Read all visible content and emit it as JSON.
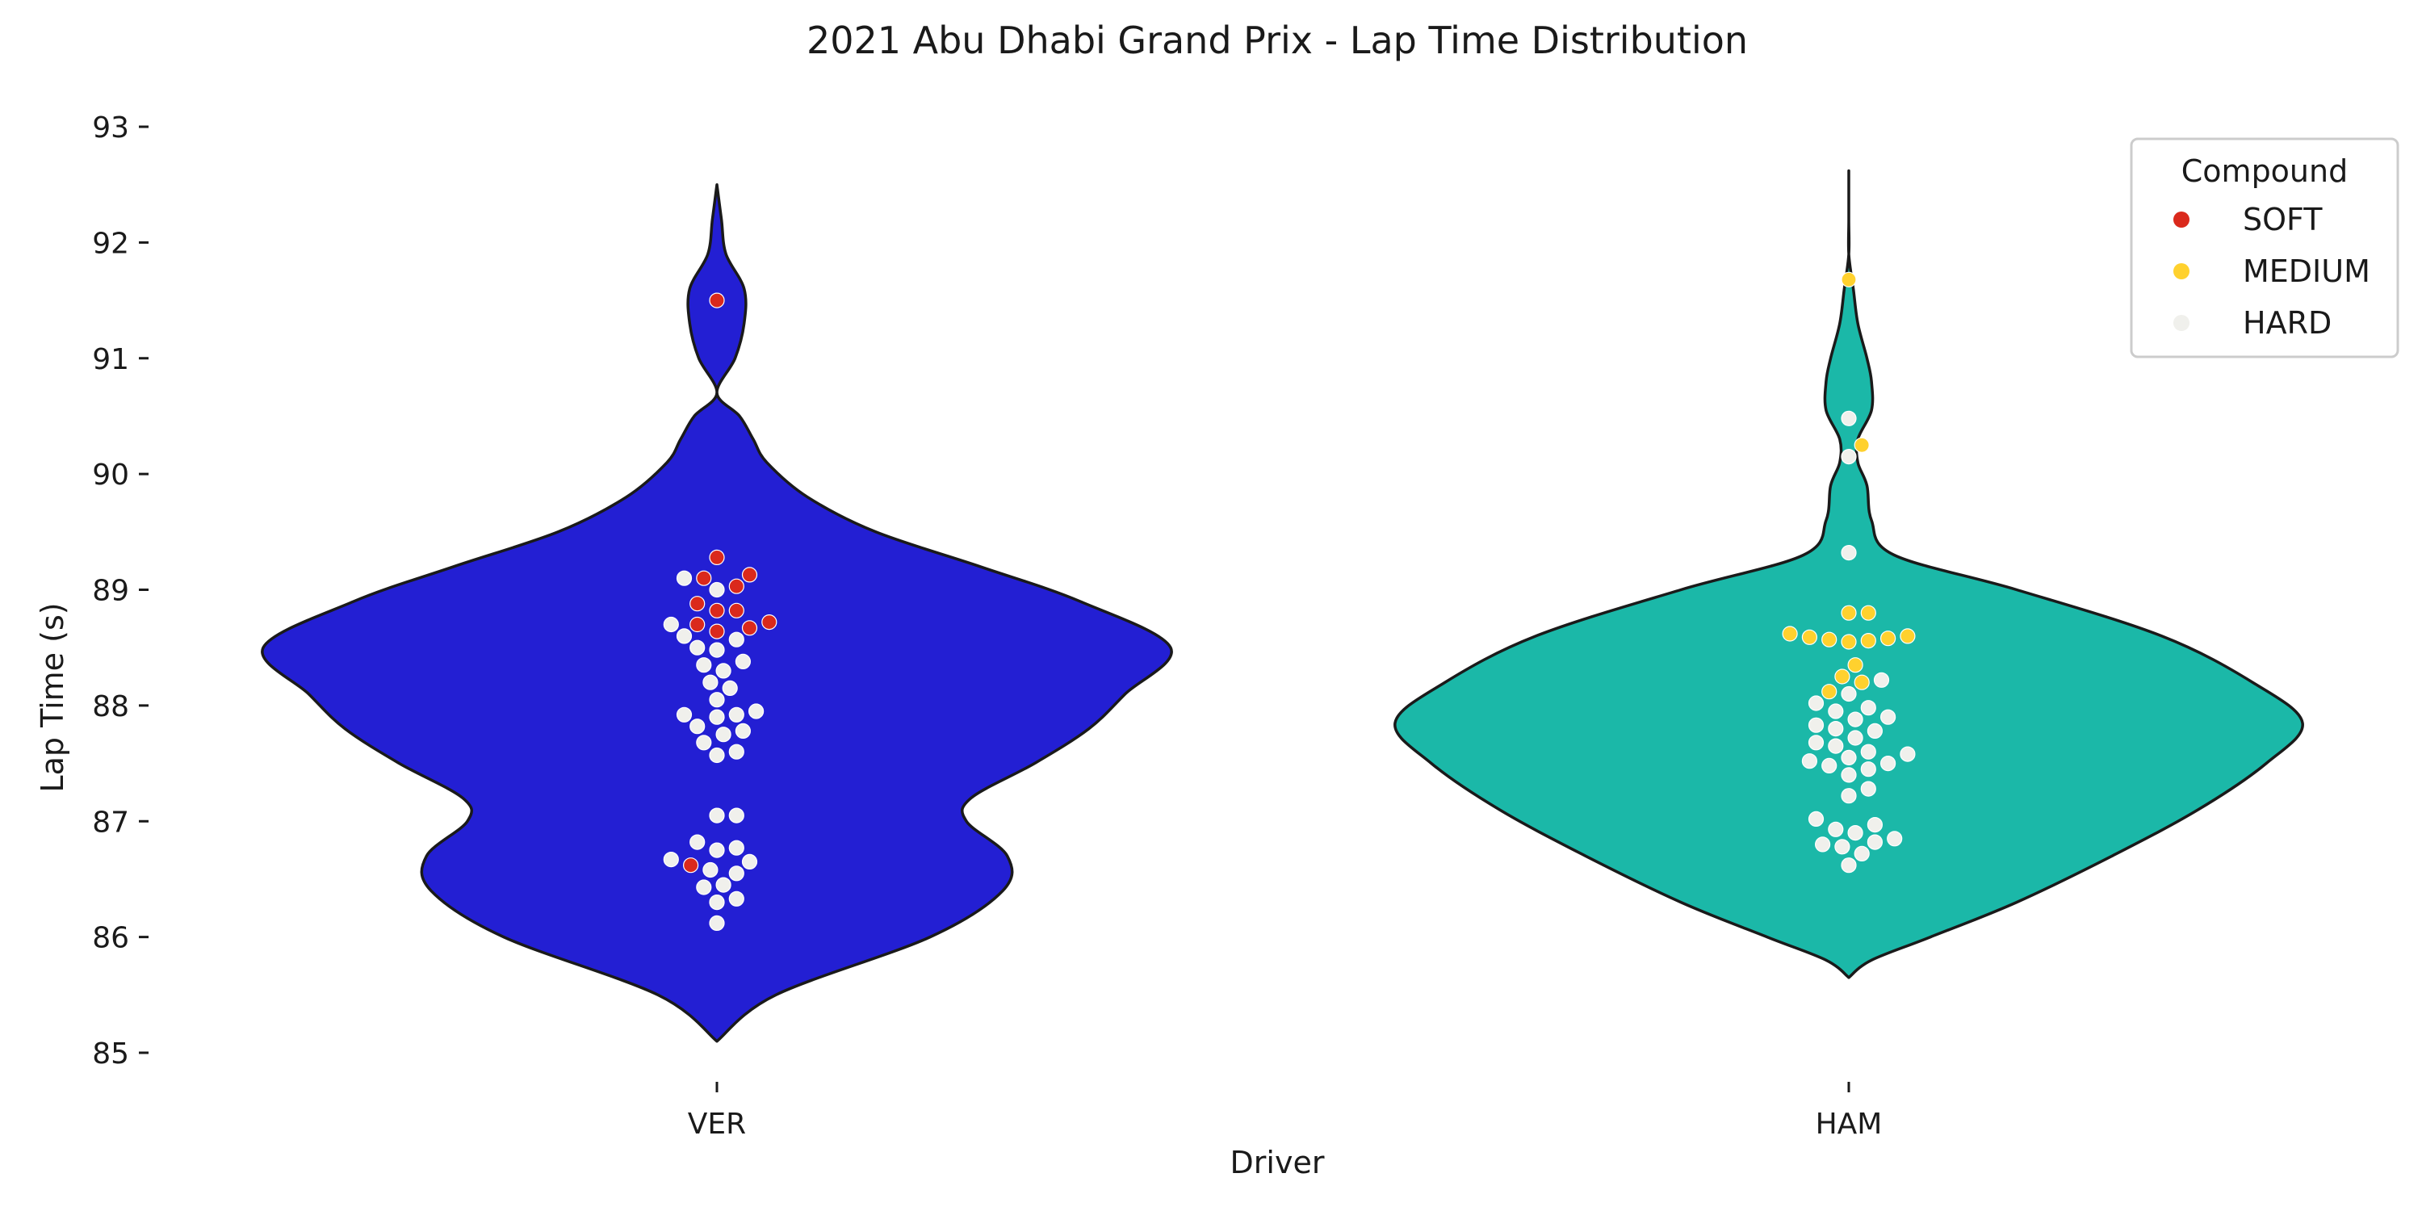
{
  "chart_data": {
    "type": "violin",
    "title": "2021 Abu Dhabi Grand Prix - Lap Time Distribution",
    "xlabel": "Driver",
    "ylabel": "Lap Time (s)",
    "categories": [
      "VER",
      "HAM"
    ],
    "ylim": [
      85,
      93
    ],
    "yticks": [
      85,
      86,
      87,
      88,
      89,
      90,
      91,
      92,
      93
    ],
    "grid": false,
    "legend": {
      "title": "Compound",
      "placement": "top-right",
      "entries": [
        {
          "name": "SOFT",
          "color": "#da291c"
        },
        {
          "name": "MEDIUM",
          "color": "#ffd12e"
        },
        {
          "name": "HARD",
          "color": "#f0f0ec"
        }
      ]
    },
    "series": [
      {
        "driver": "VER",
        "violin_color": "#231fd3",
        "laps": [
          {
            "t": 91.5,
            "compound": "SOFT"
          },
          {
            "t": 89.28,
            "compound": "SOFT"
          },
          {
            "t": 89.13,
            "compound": "SOFT"
          },
          {
            "t": 89.1,
            "compound": "SOFT"
          },
          {
            "t": 89.03,
            "compound": "SOFT"
          },
          {
            "t": 88.88,
            "compound": "SOFT"
          },
          {
            "t": 88.82,
            "compound": "SOFT"
          },
          {
            "t": 88.82,
            "compound": "SOFT"
          },
          {
            "t": 88.72,
            "compound": "SOFT"
          },
          {
            "t": 88.7,
            "compound": "SOFT"
          },
          {
            "t": 88.67,
            "compound": "SOFT"
          },
          {
            "t": 88.64,
            "compound": "SOFT"
          },
          {
            "t": 86.62,
            "compound": "SOFT"
          },
          {
            "t": 89.1,
            "compound": "HARD"
          },
          {
            "t": 89.0,
            "compound": "HARD"
          },
          {
            "t": 88.7,
            "compound": "HARD"
          },
          {
            "t": 88.6,
            "compound": "HARD"
          },
          {
            "t": 88.57,
            "compound": "HARD"
          },
          {
            "t": 88.5,
            "compound": "HARD"
          },
          {
            "t": 88.48,
            "compound": "HARD"
          },
          {
            "t": 88.38,
            "compound": "HARD"
          },
          {
            "t": 88.35,
            "compound": "HARD"
          },
          {
            "t": 88.3,
            "compound": "HARD"
          },
          {
            "t": 88.2,
            "compound": "HARD"
          },
          {
            "t": 88.15,
            "compound": "HARD"
          },
          {
            "t": 88.05,
            "compound": "HARD"
          },
          {
            "t": 87.95,
            "compound": "HARD"
          },
          {
            "t": 87.92,
            "compound": "HARD"
          },
          {
            "t": 87.92,
            "compound": "HARD"
          },
          {
            "t": 87.9,
            "compound": "HARD"
          },
          {
            "t": 87.82,
            "compound": "HARD"
          },
          {
            "t": 87.78,
            "compound": "HARD"
          },
          {
            "t": 87.75,
            "compound": "HARD"
          },
          {
            "t": 87.68,
            "compound": "HARD"
          },
          {
            "t": 87.6,
            "compound": "HARD"
          },
          {
            "t": 87.57,
            "compound": "HARD"
          },
          {
            "t": 87.05,
            "compound": "HARD"
          },
          {
            "t": 87.05,
            "compound": "HARD"
          },
          {
            "t": 86.82,
            "compound": "HARD"
          },
          {
            "t": 86.77,
            "compound": "HARD"
          },
          {
            "t": 86.75,
            "compound": "HARD"
          },
          {
            "t": 86.67,
            "compound": "HARD"
          },
          {
            "t": 86.65,
            "compound": "HARD"
          },
          {
            "t": 86.58,
            "compound": "HARD"
          },
          {
            "t": 86.55,
            "compound": "HARD"
          },
          {
            "t": 86.45,
            "compound": "HARD"
          },
          {
            "t": 86.43,
            "compound": "HARD"
          },
          {
            "t": 86.33,
            "compound": "HARD"
          },
          {
            "t": 86.3,
            "compound": "HARD"
          },
          {
            "t": 86.12,
            "compound": "HARD"
          }
        ]
      },
      {
        "driver": "HAM",
        "violin_color": "#1bb8a8",
        "laps": [
          {
            "t": 91.68,
            "compound": "MEDIUM"
          },
          {
            "t": 90.25,
            "compound": "MEDIUM"
          },
          {
            "t": 88.8,
            "compound": "MEDIUM"
          },
          {
            "t": 88.8,
            "compound": "MEDIUM"
          },
          {
            "t": 88.62,
            "compound": "MEDIUM"
          },
          {
            "t": 88.6,
            "compound": "MEDIUM"
          },
          {
            "t": 88.59,
            "compound": "MEDIUM"
          },
          {
            "t": 88.58,
            "compound": "MEDIUM"
          },
          {
            "t": 88.57,
            "compound": "MEDIUM"
          },
          {
            "t": 88.56,
            "compound": "MEDIUM"
          },
          {
            "t": 88.55,
            "compound": "MEDIUM"
          },
          {
            "t": 88.35,
            "compound": "MEDIUM"
          },
          {
            "t": 88.25,
            "compound": "MEDIUM"
          },
          {
            "t": 88.2,
            "compound": "MEDIUM"
          },
          {
            "t": 88.12,
            "compound": "MEDIUM"
          },
          {
            "t": 90.48,
            "compound": "HARD"
          },
          {
            "t": 90.15,
            "compound": "HARD"
          },
          {
            "t": 89.32,
            "compound": "HARD"
          },
          {
            "t": 88.22,
            "compound": "HARD"
          },
          {
            "t": 88.1,
            "compound": "HARD"
          },
          {
            "t": 88.02,
            "compound": "HARD"
          },
          {
            "t": 87.98,
            "compound": "HARD"
          },
          {
            "t": 87.95,
            "compound": "HARD"
          },
          {
            "t": 87.9,
            "compound": "HARD"
          },
          {
            "t": 87.88,
            "compound": "HARD"
          },
          {
            "t": 87.83,
            "compound": "HARD"
          },
          {
            "t": 87.8,
            "compound": "HARD"
          },
          {
            "t": 87.78,
            "compound": "HARD"
          },
          {
            "t": 87.72,
            "compound": "HARD"
          },
          {
            "t": 87.68,
            "compound": "HARD"
          },
          {
            "t": 87.65,
            "compound": "HARD"
          },
          {
            "t": 87.6,
            "compound": "HARD"
          },
          {
            "t": 87.58,
            "compound": "HARD"
          },
          {
            "t": 87.55,
            "compound": "HARD"
          },
          {
            "t": 87.52,
            "compound": "HARD"
          },
          {
            "t": 87.5,
            "compound": "HARD"
          },
          {
            "t": 87.48,
            "compound": "HARD"
          },
          {
            "t": 87.45,
            "compound": "HARD"
          },
          {
            "t": 87.4,
            "compound": "HARD"
          },
          {
            "t": 87.28,
            "compound": "HARD"
          },
          {
            "t": 87.22,
            "compound": "HARD"
          },
          {
            "t": 87.02,
            "compound": "HARD"
          },
          {
            "t": 86.97,
            "compound": "HARD"
          },
          {
            "t": 86.93,
            "compound": "HARD"
          },
          {
            "t": 86.9,
            "compound": "HARD"
          },
          {
            "t": 86.85,
            "compound": "HARD"
          },
          {
            "t": 86.82,
            "compound": "HARD"
          },
          {
            "t": 86.8,
            "compound": "HARD"
          },
          {
            "t": 86.78,
            "compound": "HARD"
          },
          {
            "t": 86.72,
            "compound": "HARD"
          },
          {
            "t": 86.62,
            "compound": "HARD"
          }
        ]
      }
    ],
    "violin_shapes": [
      {
        "driver": "VER",
        "profile_s": [
          85.1,
          85.5,
          86.0,
          86.4,
          86.7,
          87.0,
          87.2,
          87.5,
          87.8,
          88.1,
          88.5,
          88.9,
          89.2,
          89.5,
          89.8,
          90.1,
          90.3,
          90.5,
          90.7,
          91.0,
          91.3,
          91.6,
          91.9,
          92.2,
          92.5
        ],
        "half_width_frac_of_max": [
          0.0,
          0.13,
          0.47,
          0.63,
          0.64,
          0.55,
          0.56,
          0.7,
          0.82,
          0.9,
          1.0,
          0.8,
          0.58,
          0.35,
          0.2,
          0.11,
          0.08,
          0.05,
          0.0,
          0.04,
          0.06,
          0.06,
          0.02,
          0.01,
          0.0
        ]
      },
      {
        "driver": "HAM",
        "profile_s": [
          85.65,
          85.8,
          86.0,
          86.3,
          86.7,
          87.1,
          87.5,
          87.85,
          88.2,
          88.6,
          89.0,
          89.3,
          89.6,
          89.9,
          90.1,
          90.3,
          90.55,
          90.8,
          91.0,
          91.3,
          91.6,
          91.9,
          92.2,
          92.62
        ],
        "half_width_frac_of_max": [
          0.0,
          0.05,
          0.18,
          0.37,
          0.58,
          0.77,
          0.92,
          1.0,
          0.89,
          0.69,
          0.37,
          0.1,
          0.05,
          0.04,
          0.02,
          0.02,
          0.05,
          0.05,
          0.04,
          0.02,
          0.01,
          0.0,
          0.0,
          0.0
        ]
      }
    ]
  }
}
